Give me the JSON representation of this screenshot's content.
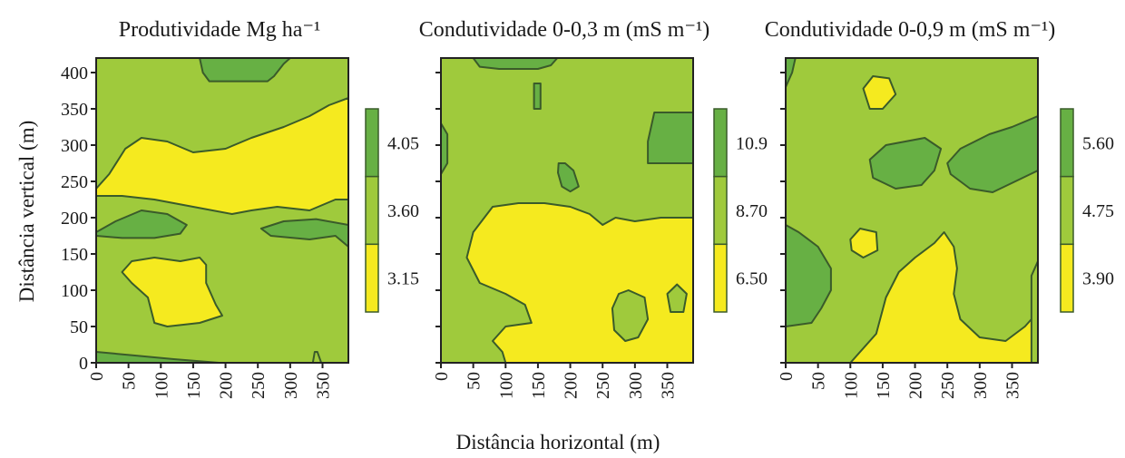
{
  "figure": {
    "xlabel": "Distância horizontal (m)",
    "ylabel": "Distância vertical (m)"
  },
  "colors": {
    "high": "#67b044",
    "mid": "#9fca3c",
    "low": "#f5ea1f",
    "outline": "#3a5b2a"
  },
  "chart_data": [
    {
      "type": "contour",
      "title": "Produtividade Mg ha⁻¹",
      "xlabel": "Distância horizontal (m)",
      "ylabel": "Distância vertical (m)",
      "x_ticks": [
        "0",
        "50",
        "100",
        "150",
        "200",
        "250",
        "300",
        "350"
      ],
      "y_ticks": [
        "0",
        "50",
        "100",
        "150",
        "200",
        "250",
        "300",
        "350",
        "400"
      ],
      "xlim": [
        0,
        390
      ],
      "ylim": [
        0,
        420
      ],
      "levels": [
        "3.15",
        "3.60",
        "4.05"
      ],
      "zones": [
        {
          "class": "high",
          "points": [
            [
              160,
              420
            ],
            [
              300,
              420
            ],
            [
              290,
              412
            ],
            [
              275,
              395
            ],
            [
              265,
              388
            ],
            [
              175,
              388
            ],
            [
              165,
              400
            ]
          ]
        },
        {
          "class": "low",
          "points": [
            [
              0,
              240
            ],
            [
              20,
              260
            ],
            [
              45,
              295
            ],
            [
              70,
              310
            ],
            [
              110,
              305
            ],
            [
              150,
              290
            ],
            [
              200,
              295
            ],
            [
              240,
              310
            ],
            [
              290,
              325
            ],
            [
              330,
              340
            ],
            [
              360,
              355
            ],
            [
              390,
              365
            ],
            [
              390,
              225
            ],
            [
              370,
              225
            ],
            [
              330,
              210
            ],
            [
              280,
              215
            ],
            [
              240,
              210
            ],
            [
              210,
              205
            ],
            [
              150,
              215
            ],
            [
              90,
              225
            ],
            [
              40,
              230
            ],
            [
              0,
              230
            ]
          ]
        },
        {
          "class": "high",
          "points": [
            [
              0,
              180
            ],
            [
              30,
              195
            ],
            [
              70,
              210
            ],
            [
              110,
              205
            ],
            [
              140,
              190
            ],
            [
              130,
              178
            ],
            [
              90,
              172
            ],
            [
              40,
              172
            ],
            [
              0,
              175
            ]
          ]
        },
        {
          "class": "high",
          "points": [
            [
              255,
              185
            ],
            [
              290,
              195
            ],
            [
              340,
              198
            ],
            [
              390,
              190
            ],
            [
              390,
              160
            ],
            [
              370,
              175
            ],
            [
              330,
              170
            ],
            [
              270,
              175
            ]
          ]
        },
        {
          "class": "low",
          "points": [
            [
              40,
              125
            ],
            [
              55,
              140
            ],
            [
              90,
              145
            ],
            [
              130,
              140
            ],
            [
              160,
              145
            ],
            [
              170,
              135
            ],
            [
              170,
              110
            ],
            [
              185,
              80
            ],
            [
              195,
              65
            ],
            [
              160,
              55
            ],
            [
              110,
              50
            ],
            [
              90,
              55
            ],
            [
              80,
              90
            ],
            [
              55,
              110
            ]
          ]
        },
        {
          "class": "high",
          "points": [
            [
              0,
              15
            ],
            [
              60,
              10
            ],
            [
              120,
              5
            ],
            [
              190,
              0
            ],
            [
              0,
              0
            ]
          ]
        },
        {
          "class": "mid",
          "points": [
            [
              335,
              0
            ],
            [
              338,
              15
            ],
            [
              342,
              15
            ],
            [
              348,
              0
            ]
          ]
        }
      ],
      "colorbar": {
        "labels": [
          "4.05",
          "3.60",
          "3.15"
        ]
      }
    },
    {
      "type": "contour",
      "title": "Condutividade 0-0,3 m (mS m⁻¹)",
      "x_ticks": [
        "0",
        "50",
        "100",
        "150",
        "200",
        "250",
        "300",
        "350"
      ],
      "y_ticks": [],
      "xlim": [
        0,
        390
      ],
      "ylim": [
        0,
        420
      ],
      "levels": [
        "6.50",
        "8.70",
        "10.9"
      ],
      "zones": [
        {
          "class": "high",
          "points": [
            [
              50,
              420
            ],
            [
              180,
              420
            ],
            [
              170,
              410
            ],
            [
              150,
              405
            ],
            [
              90,
              405
            ],
            [
              60,
              408
            ]
          ]
        },
        {
          "class": "high",
          "points": [
            [
              0,
              330
            ],
            [
              10,
              315
            ],
            [
              10,
              275
            ],
            [
              0,
              260
            ]
          ]
        },
        {
          "class": "high",
          "points": [
            [
              330,
              345
            ],
            [
              390,
              345
            ],
            [
              390,
              275
            ],
            [
              340,
              275
            ],
            [
              320,
              275
            ],
            [
              320,
              305
            ]
          ]
        },
        {
          "class": "high",
          "points": [
            [
              182,
              275
            ],
            [
              192,
              275
            ],
            [
              205,
              265
            ],
            [
              213,
              243
            ],
            [
              200,
              236
            ],
            [
              187,
              243
            ],
            [
              181,
              262
            ]
          ]
        },
        {
          "class": "high",
          "points": [
            [
              144,
              385
            ],
            [
              154,
              385
            ],
            [
              154,
              350
            ],
            [
              144,
              350
            ]
          ]
        },
        {
          "class": "low",
          "points": [
            [
              50,
              180
            ],
            [
              80,
              215
            ],
            [
              120,
              220
            ],
            [
              160,
              220
            ],
            [
              200,
              215
            ],
            [
              230,
              205
            ],
            [
              250,
              190
            ],
            [
              270,
              200
            ],
            [
              300,
              195
            ],
            [
              340,
              200
            ],
            [
              390,
              200
            ],
            [
              390,
              0
            ],
            [
              100,
              0
            ],
            [
              95,
              15
            ],
            [
              80,
              30
            ],
            [
              100,
              50
            ],
            [
              140,
              55
            ],
            [
              130,
              80
            ],
            [
              100,
              95
            ],
            [
              60,
              110
            ],
            [
              40,
              145
            ]
          ]
        },
        {
          "class": "mid",
          "points": [
            [
              265,
              75
            ],
            [
              275,
              95
            ],
            [
              290,
              100
            ],
            [
              315,
              90
            ],
            [
              320,
              60
            ],
            [
              305,
              35
            ],
            [
              285,
              30
            ],
            [
              268,
              45
            ]
          ]
        },
        {
          "class": "mid",
          "points": [
            [
              350,
              95
            ],
            [
              365,
              108
            ],
            [
              380,
              95
            ],
            [
              375,
              70
            ],
            [
              355,
              70
            ]
          ]
        }
      ],
      "colorbar": {
        "labels": [
          "10.9",
          "8.70",
          "6.50"
        ]
      }
    },
    {
      "type": "contour",
      "title": "Condutividade 0-0,9 m (mS m⁻¹)",
      "x_ticks": [
        "0",
        "50",
        "100",
        "150",
        "200",
        "250",
        "300",
        "350"
      ],
      "y_ticks": [],
      "xlim": [
        0,
        390
      ],
      "ylim": [
        0,
        420
      ],
      "levels": [
        "3.90",
        "4.75",
        "5.60"
      ],
      "zones": [
        {
          "class": "high",
          "points": [
            [
              0,
              420
            ],
            [
              15,
              420
            ],
            [
              10,
              400
            ],
            [
              0,
              380
            ]
          ]
        },
        {
          "class": "low",
          "points": [
            [
              120,
              378
            ],
            [
              135,
              395
            ],
            [
              160,
              392
            ],
            [
              170,
              370
            ],
            [
              150,
              350
            ],
            [
              130,
              350
            ]
          ]
        },
        {
          "class": "high",
          "points": [
            [
              130,
              280
            ],
            [
              155,
              300
            ],
            [
              215,
              310
            ],
            [
              240,
              295
            ],
            [
              230,
              265
            ],
            [
              210,
              245
            ],
            [
              170,
              240
            ],
            [
              135,
              255
            ]
          ]
        },
        {
          "class": "high",
          "points": [
            [
              250,
              275
            ],
            [
              270,
              295
            ],
            [
              315,
              315
            ],
            [
              350,
              325
            ],
            [
              390,
              340
            ],
            [
              390,
              265
            ],
            [
              355,
              250
            ],
            [
              320,
              235
            ],
            [
              285,
              240
            ],
            [
              255,
              260
            ]
          ]
        },
        {
          "class": "low",
          "points": [
            [
              100,
              170
            ],
            [
              115,
              185
            ],
            [
              140,
              180
            ],
            [
              142,
              155
            ],
            [
              120,
              145
            ],
            [
              102,
              155
            ]
          ]
        },
        {
          "class": "high",
          "points": [
            [
              0,
              190
            ],
            [
              20,
              180
            ],
            [
              50,
              160
            ],
            [
              70,
              130
            ],
            [
              70,
              100
            ],
            [
              55,
              75
            ],
            [
              40,
              55
            ],
            [
              0,
              50
            ]
          ]
        },
        {
          "class": "low",
          "points": [
            [
              100,
              0
            ],
            [
              140,
              40
            ],
            [
              155,
              90
            ],
            [
              175,
              125
            ],
            [
              200,
              145
            ],
            [
              230,
              165
            ],
            [
              245,
              180
            ],
            [
              260,
              160
            ],
            [
              265,
              130
            ],
            [
              260,
              95
            ],
            [
              270,
              60
            ],
            [
              300,
              35
            ],
            [
              340,
              30
            ],
            [
              370,
              50
            ],
            [
              390,
              70
            ],
            [
              390,
              0
            ]
          ]
        },
        {
          "class": "mid",
          "points": [
            [
              380,
              0
            ],
            [
              390,
              0
            ],
            [
              390,
              140
            ],
            [
              380,
              120
            ]
          ]
        }
      ],
      "colorbar": {
        "labels": [
          "5.60",
          "4.75",
          "3.90"
        ]
      }
    }
  ]
}
